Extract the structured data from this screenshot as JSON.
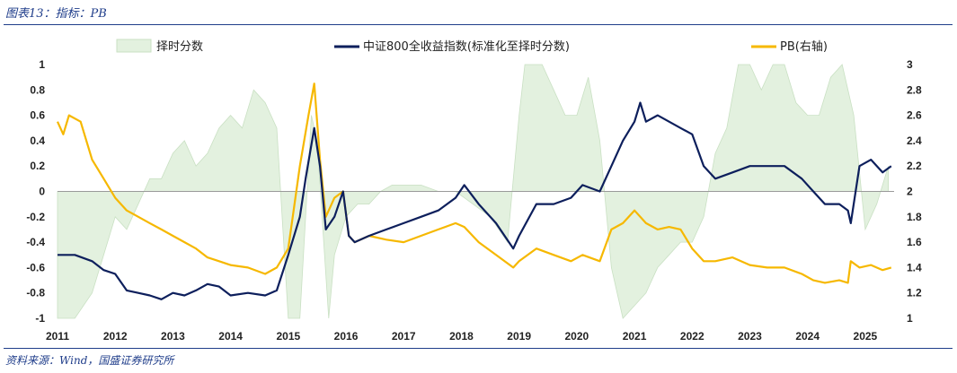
{
  "title": "图表13：指标：PB",
  "source": "资料来源：Wind，国盛证券研究所",
  "colors": {
    "fill": "#e3f1df",
    "fill_stroke": "#c9e0c3",
    "index": "#0d1f5c",
    "pb": "#f6b800",
    "accent": "#1f3d8a"
  },
  "chart_data": {
    "type": "line",
    "legend": [
      "择时分数",
      "中证800全收益指数(标准化至择时分数)",
      "PB(右轴)"
    ],
    "x_ticks": [
      "2011",
      "2012",
      "2013",
      "2014",
      "2015",
      "2016",
      "2017",
      "2018",
      "2019",
      "2020",
      "2021",
      "2022",
      "2023",
      "2024",
      "2025"
    ],
    "y_left_ticks": [
      "1",
      "0.8",
      "0.6",
      "0.4",
      "0.2",
      "0",
      "-0.2",
      "-0.4",
      "-0.6",
      "-0.8",
      "-1"
    ],
    "y_right_ticks": [
      "3",
      "2.8",
      "2.6",
      "2.4",
      "2.2",
      "2",
      "1.8",
      "1.6",
      "1.4",
      "1.2",
      "1"
    ],
    "ylim_left": [
      -1,
      1
    ],
    "ylim_right": [
      1,
      3
    ],
    "xlim": [
      2011.0,
      2025.5
    ],
    "series": [
      {
        "name": "择时分数",
        "axis": "left",
        "type": "area",
        "x": [
          2011.0,
          2011.3,
          2011.6,
          2011.8,
          2012.0,
          2012.2,
          2012.4,
          2012.6,
          2012.8,
          2013.0,
          2013.2,
          2013.4,
          2013.6,
          2013.8,
          2014.0,
          2014.2,
          2014.4,
          2014.6,
          2014.8,
          2015.0,
          2015.2,
          2015.4,
          2015.5,
          2015.7,
          2015.8,
          2016.0,
          2016.2,
          2016.4,
          2016.6,
          2016.8,
          2017.0,
          2017.3,
          2017.6,
          2017.9,
          2018.2,
          2018.5,
          2018.8,
          2019.0,
          2019.1,
          2019.2,
          2019.4,
          2019.6,
          2019.8,
          2020.0,
          2020.2,
          2020.4,
          2020.6,
          2020.8,
          2021.0,
          2021.2,
          2021.4,
          2021.6,
          2021.8,
          2022.0,
          2022.2,
          2022.4,
          2022.6,
          2022.8,
          2023.0,
          2023.2,
          2023.4,
          2023.6,
          2023.8,
          2024.0,
          2024.2,
          2024.4,
          2024.6,
          2024.8,
          2025.0,
          2025.2,
          2025.4
        ],
        "values": [
          -1.0,
          -1.0,
          -0.8,
          -0.5,
          -0.2,
          -0.3,
          -0.1,
          0.1,
          0.1,
          0.3,
          0.4,
          0.2,
          0.3,
          0.5,
          0.6,
          0.5,
          0.8,
          0.7,
          0.5,
          -1.0,
          -1.0,
          0.6,
          0.4,
          -1.0,
          -0.5,
          -0.2,
          -0.1,
          -0.1,
          0.0,
          0.05,
          0.05,
          0.05,
          0.0,
          0.0,
          -0.1,
          -0.2,
          -0.4,
          0.6,
          1.0,
          1.0,
          1.0,
          0.8,
          0.6,
          0.6,
          0.9,
          0.4,
          -0.6,
          -1.0,
          -0.9,
          -0.8,
          -0.6,
          -0.5,
          -0.4,
          -0.4,
          -0.2,
          0.3,
          0.5,
          1.0,
          1.0,
          0.8,
          1.0,
          1.0,
          0.7,
          0.6,
          0.6,
          0.9,
          1.0,
          0.6,
          -0.3,
          -0.1,
          0.2
        ]
      },
      {
        "name": "中证800全收益指数(标准化至择时分数)",
        "axis": "left",
        "type": "line",
        "x": [
          2011.0,
          2011.3,
          2011.6,
          2011.8,
          2012.0,
          2012.2,
          2012.4,
          2012.6,
          2012.8,
          2013.0,
          2013.2,
          2013.4,
          2013.6,
          2013.8,
          2014.0,
          2014.3,
          2014.6,
          2014.8,
          2015.0,
          2015.2,
          2015.3,
          2015.45,
          2015.55,
          2015.65,
          2015.8,
          2015.95,
          2016.05,
          2016.15,
          2016.4,
          2016.7,
          2017.0,
          2017.3,
          2017.6,
          2017.9,
          2018.05,
          2018.3,
          2018.6,
          2018.9,
          2019.0,
          2019.3,
          2019.6,
          2019.9,
          2020.1,
          2020.4,
          2020.6,
          2020.8,
          2021.0,
          2021.1,
          2021.2,
          2021.4,
          2021.6,
          2021.8,
          2022.0,
          2022.2,
          2022.4,
          2022.7,
          2023.0,
          2023.3,
          2023.6,
          2023.9,
          2024.1,
          2024.3,
          2024.55,
          2024.7,
          2024.75,
          2024.9,
          2025.1,
          2025.3,
          2025.45
        ],
        "values": [
          -0.5,
          -0.5,
          -0.55,
          -0.62,
          -0.65,
          -0.78,
          -0.8,
          -0.82,
          -0.85,
          -0.8,
          -0.82,
          -0.78,
          -0.73,
          -0.75,
          -0.82,
          -0.8,
          -0.82,
          -0.78,
          -0.5,
          -0.2,
          0.1,
          0.5,
          0.2,
          -0.3,
          -0.2,
          0.0,
          -0.35,
          -0.4,
          -0.35,
          -0.3,
          -0.25,
          -0.2,
          -0.15,
          -0.05,
          0.05,
          -0.1,
          -0.25,
          -0.45,
          -0.35,
          -0.1,
          -0.1,
          -0.05,
          0.05,
          0.0,
          0.2,
          0.4,
          0.55,
          0.7,
          0.55,
          0.6,
          0.55,
          0.5,
          0.45,
          0.2,
          0.1,
          0.15,
          0.2,
          0.2,
          0.2,
          0.1,
          0.0,
          -0.1,
          -0.1,
          -0.15,
          -0.25,
          0.2,
          0.25,
          0.15,
          0.2
        ]
      },
      {
        "name": "PB(右轴)",
        "axis": "right",
        "type": "line",
        "x": [
          2011.0,
          2011.1,
          2011.2,
          2011.4,
          2011.6,
          2011.8,
          2012.0,
          2012.2,
          2012.4,
          2012.6,
          2012.8,
          2013.0,
          2013.2,
          2013.4,
          2013.6,
          2013.8,
          2014.0,
          2014.3,
          2014.6,
          2014.8,
          2015.0,
          2015.2,
          2015.35,
          2015.45,
          2015.55,
          2015.65,
          2015.8,
          2015.95,
          2016.05,
          2016.15,
          2016.4,
          2016.7,
          2017.0,
          2017.3,
          2017.6,
          2017.9,
          2018.05,
          2018.3,
          2018.6,
          2018.9,
          2019.0,
          2019.3,
          2019.6,
          2019.9,
          2020.1,
          2020.4,
          2020.6,
          2020.8,
          2021.0,
          2021.2,
          2021.4,
          2021.6,
          2021.8,
          2022.0,
          2022.2,
          2022.4,
          2022.7,
          2023.0,
          2023.3,
          2023.6,
          2023.9,
          2024.1,
          2024.3,
          2024.55,
          2024.7,
          2024.75,
          2024.9,
          2025.1,
          2025.3,
          2025.45
        ],
        "values": [
          2.55,
          2.45,
          2.6,
          2.55,
          2.25,
          2.1,
          1.95,
          1.85,
          1.8,
          1.75,
          1.7,
          1.65,
          1.6,
          1.55,
          1.48,
          1.45,
          1.42,
          1.4,
          1.35,
          1.4,
          1.55,
          2.2,
          2.6,
          2.85,
          2.25,
          1.8,
          1.95,
          2.0,
          1.65,
          1.6,
          1.65,
          1.62,
          1.6,
          1.65,
          1.7,
          1.75,
          1.72,
          1.6,
          1.5,
          1.4,
          1.45,
          1.55,
          1.5,
          1.45,
          1.5,
          1.45,
          1.7,
          1.75,
          1.85,
          1.75,
          1.7,
          1.72,
          1.7,
          1.55,
          1.45,
          1.45,
          1.48,
          1.42,
          1.4,
          1.4,
          1.35,
          1.3,
          1.28,
          1.3,
          1.28,
          1.45,
          1.4,
          1.42,
          1.38,
          1.4
        ]
      }
    ]
  }
}
